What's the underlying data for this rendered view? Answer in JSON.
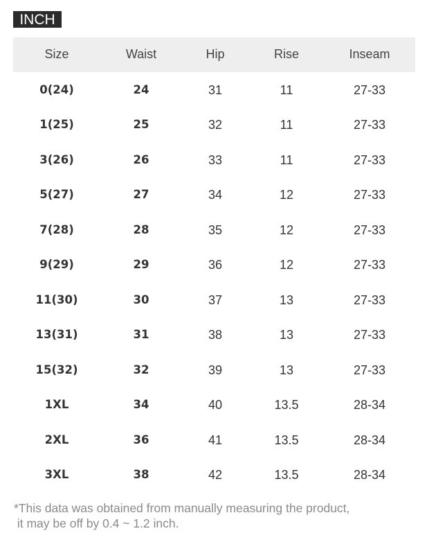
{
  "unit_label": "INCH",
  "table": {
    "headers": [
      "Size",
      "Waist",
      "Hip",
      "Rise",
      "Inseam"
    ],
    "rows": [
      [
        "0(24)",
        "24",
        "31",
        "11",
        "27-33"
      ],
      [
        "1(25)",
        "25",
        "32",
        "11",
        "27-33"
      ],
      [
        "3(26)",
        "26",
        "33",
        "11",
        "27-33"
      ],
      [
        "5(27)",
        "27",
        "34",
        "12",
        "27-33"
      ],
      [
        "7(28)",
        "28",
        "35",
        "12",
        "27-33"
      ],
      [
        "9(29)",
        "29",
        "36",
        "12",
        "27-33"
      ],
      [
        "11(30)",
        "30",
        "37",
        "13",
        "27-33"
      ],
      [
        "13(31)",
        "31",
        "38",
        "13",
        "27-33"
      ],
      [
        "15(32)",
        "32",
        "39",
        "13",
        "27-33"
      ],
      [
        "1XL",
        "34",
        "40",
        "13.5",
        "28-34"
      ],
      [
        "2XL",
        "36",
        "41",
        "13.5",
        "28-34"
      ],
      [
        "3XL",
        "38",
        "42",
        "13.5",
        "28-34"
      ]
    ]
  },
  "footnote": {
    "line1": "*This data was obtained from manually measuring the product,",
    "line2": " it may be off by 0.4 ~ 1.2 inch."
  }
}
